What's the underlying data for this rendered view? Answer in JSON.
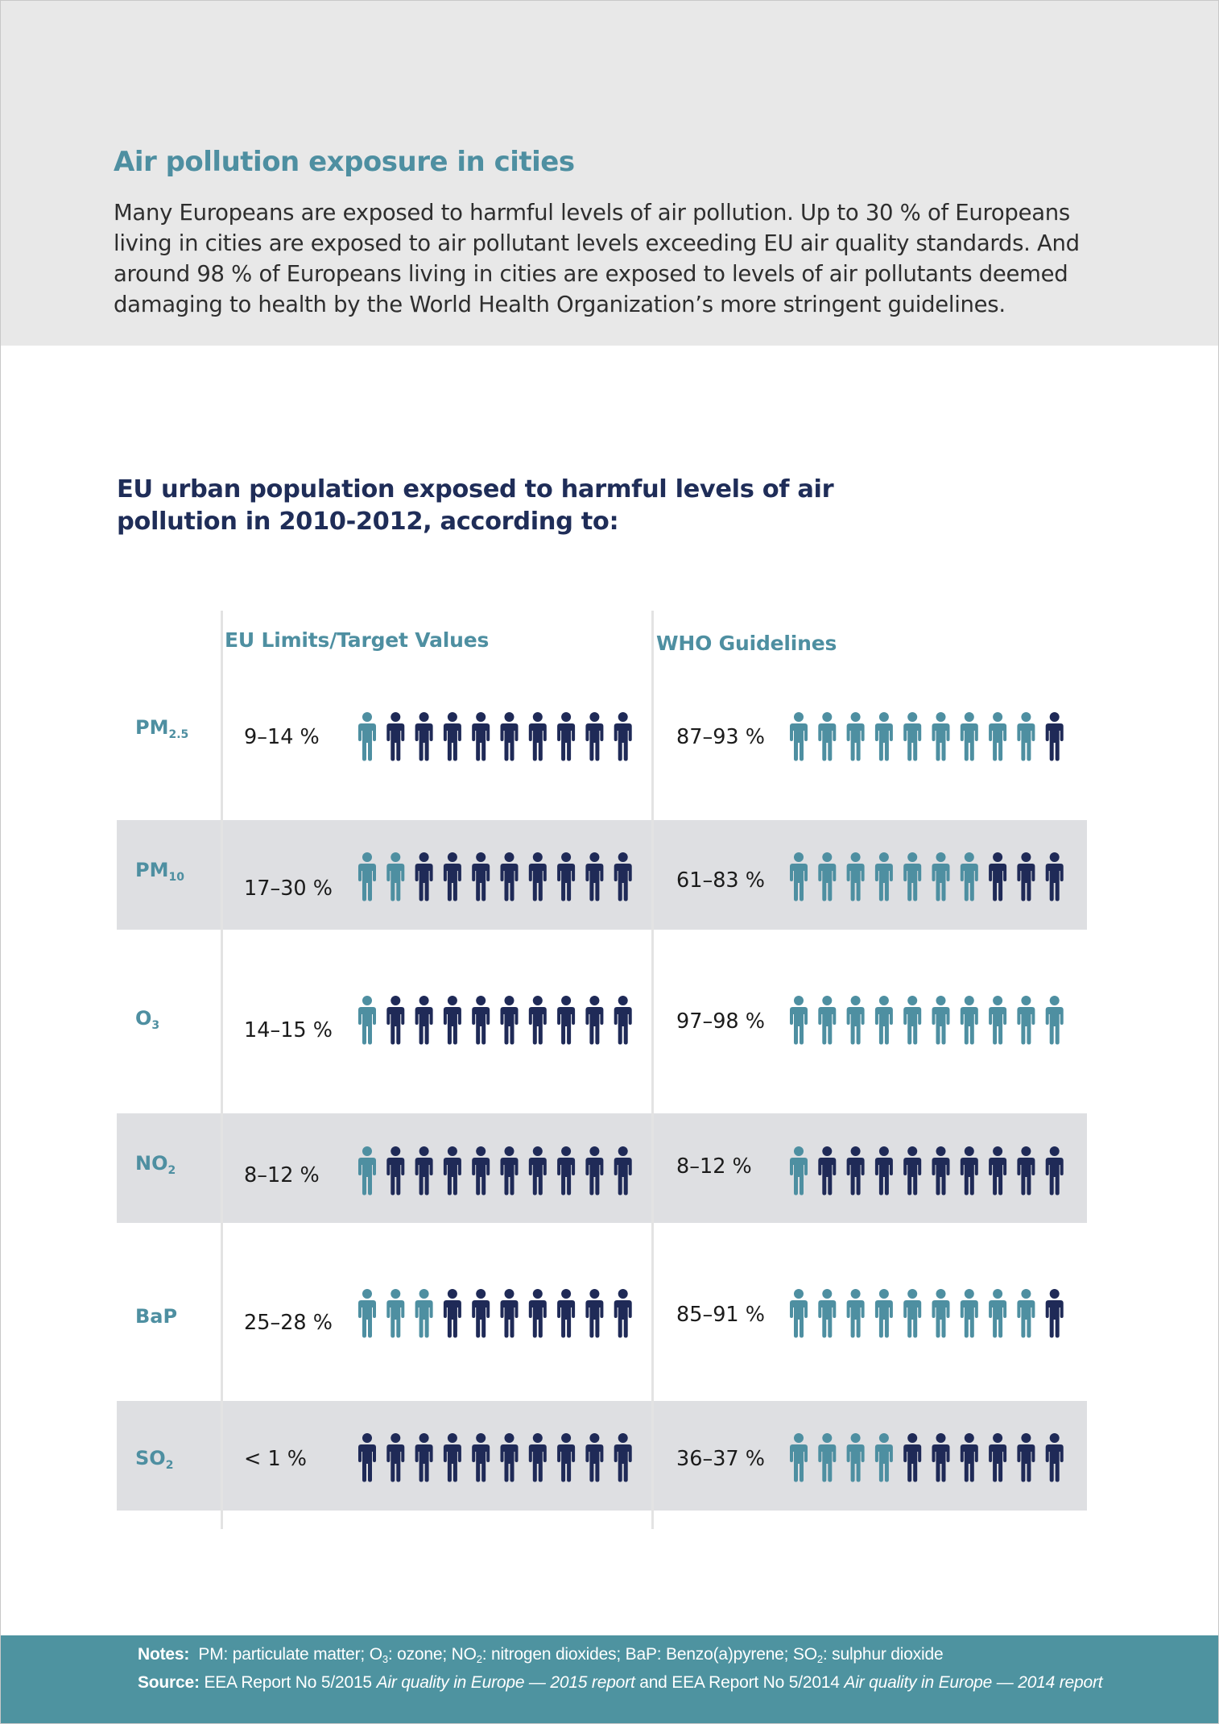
{
  "intro": {
    "title": "Air pollution exposure in cities",
    "body": "Many Europeans are exposed to harmful levels of air pollution. Up to 30 % of Europeans living in cities are exposed to air pollutant levels exceeding EU air quality standards. And around 98 % of Europeans living in cities are exposed to levels of air pollutants deemed damaging to health by the World Health Organization’s more stringent guidelines."
  },
  "colors": {
    "exposed": "#4e8fa1",
    "not_exposed": "#1f2a57",
    "band": "#dedfe2",
    "footer_bg": "#4e93a0"
  },
  "chart_data": {
    "type": "table",
    "title": "EU urban population exposed to harmful levels of air pollution in 2010-2012, according to:",
    "columns": [
      "EU Limits/Target Values",
      "WHO Guidelines"
    ],
    "icons_per_row": 10,
    "rows": [
      {
        "pollutant": "PM",
        "sub": "2.5",
        "eu_label": "9–14 %",
        "eu_icons": 1,
        "who_label": "87–93 %",
        "who_icons": 9
      },
      {
        "pollutant": "PM",
        "sub": "10",
        "eu_label": "17–30 %",
        "eu_icons": 2,
        "who_label": "61–83 %",
        "who_icons": 7
      },
      {
        "pollutant": "O",
        "sub": "3",
        "eu_label": "14–15 %",
        "eu_icons": 1,
        "who_label": "97–98 %",
        "who_icons": 10
      },
      {
        "pollutant": "NO",
        "sub": "2",
        "eu_label": "8–12 %",
        "eu_icons": 1,
        "who_label": "8–12 %",
        "who_icons": 1
      },
      {
        "pollutant": "BaP",
        "sub": "",
        "eu_label": "25–28 %",
        "eu_icons": 3,
        "who_label": "85–91 %",
        "who_icons": 9
      },
      {
        "pollutant": "SO",
        "sub": "2",
        "eu_label": "< 1 %",
        "eu_icons": 0,
        "who_label": "36–37 %",
        "who_icons": 4
      }
    ]
  },
  "footer": {
    "notes_label": "Notes:",
    "notes_1": "PM: particulate matter; O",
    "notes_1_sub": "3",
    "notes_2": ": ozone; NO",
    "notes_2_sub": "2",
    "notes_3": ": nitrogen dioxides; BaP: Benzo(a)pyrene; SO",
    "notes_3_sub": "2",
    "notes_4": ": sulphur dioxide",
    "source_label": "Source:",
    "source_1": "EEA Report No 5/2015",
    "source_1_title": "Air quality in Europe — 2015 report",
    "source_and": "and EEA Report No 5/2014",
    "source_2_title": "Air quality in Europe — 2014 report"
  }
}
